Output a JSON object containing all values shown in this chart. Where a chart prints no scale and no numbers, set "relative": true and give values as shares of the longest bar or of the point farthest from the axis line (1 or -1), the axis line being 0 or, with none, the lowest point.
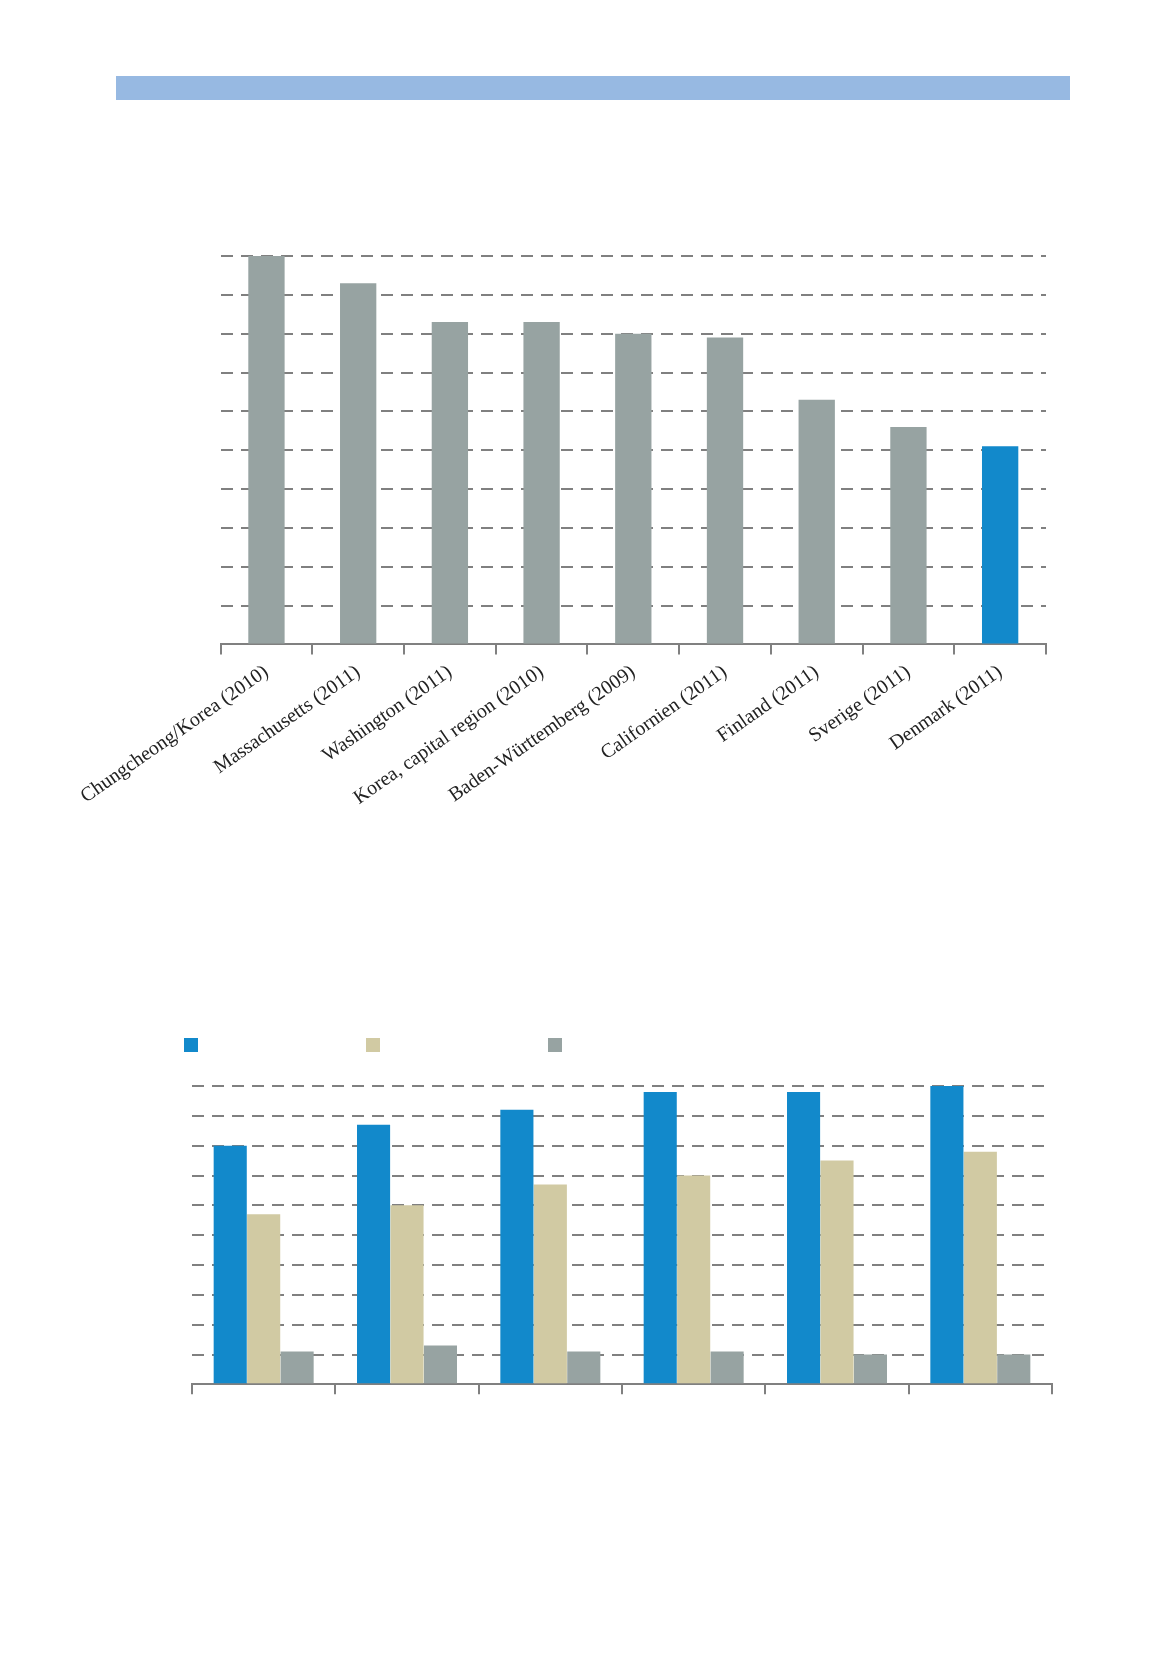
{
  "chart_data": [
    {
      "type": "bar",
      "relative": true,
      "grid": "y",
      "legend": false,
      "categories": [
        "Chungcheong/Korea (2010)",
        "Massachusetts (2011)",
        "Washington (2011)",
        "Korea, capital region (2010)",
        "Baden-Württemberg (2009)",
        "Californien (2011)",
        "Finland (2011)",
        "Sverige (2011)",
        "Denmark (2011)"
      ],
      "values": [
        1,
        0.93,
        0.83,
        0.83,
        0.8,
        0.79,
        0.63,
        0.56,
        0.51
      ],
      "colors": [
        "#97a3a2",
        "#97a3a2",
        "#97a3a2",
        "#97a3a2",
        "#97a3a2",
        "#97a3a2",
        "#97a3a2",
        "#97a3a2",
        "#1289cb"
      ]
    },
    {
      "type": "bar",
      "relative": true,
      "grid": "y",
      "categories": [
        null,
        null,
        null,
        null,
        null,
        null
      ],
      "series": [
        {
          "color": "#1289cb",
          "values": [
            0.8,
            0.87,
            0.92,
            0.98,
            0.98,
            1
          ]
        },
        {
          "color": "#d1caa3",
          "values": [
            0.57,
            0.6,
            0.67,
            0.7,
            0.75,
            0.78
          ]
        },
        {
          "color": "#97a3a2",
          "values": [
            0.11,
            0.13,
            0.11,
            0.11,
            0.1,
            0.1
          ]
        }
      ]
    }
  ]
}
